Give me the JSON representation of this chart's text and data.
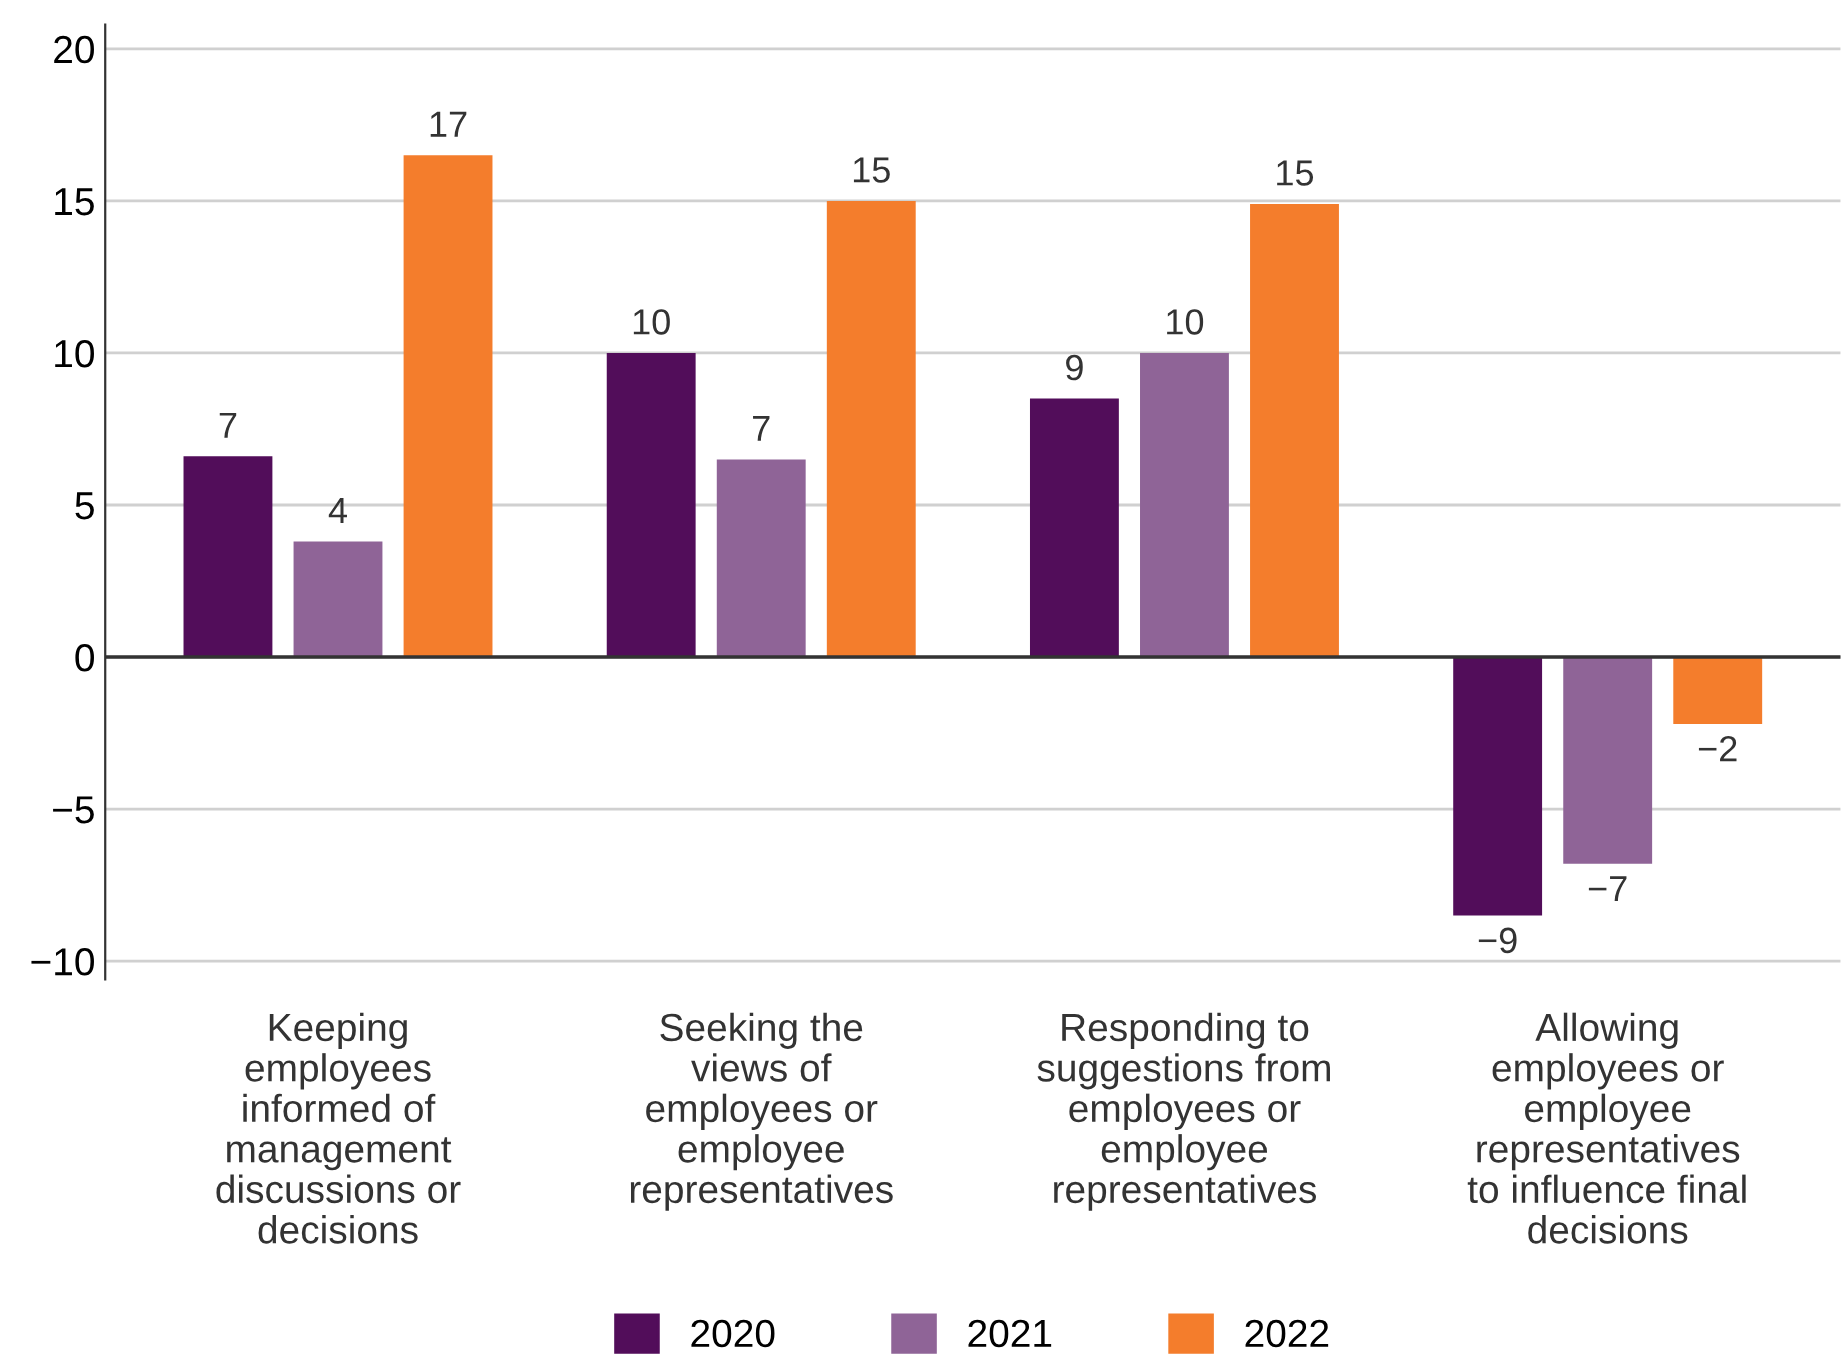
{
  "chart_data": {
    "type": "bar",
    "categories": [
      "Keeping\nemployees\ninformed of\nmanagement\ndiscussions or\ndecisions",
      "Seeking the\nviews of\nemployees or\nemployee\nrepresentatives",
      "Responding to\nsuggestions from\nemployees or\nemployee\nrepresentatives",
      "Allowing\nemployees or\nemployee\nrepresentatives\nto influence final\ndecisions"
    ],
    "series": [
      {
        "name": "2020",
        "color": "#520d5a",
        "values": [
          6.6,
          10.0,
          8.5,
          -8.5
        ],
        "value_labels": [
          "7",
          "10",
          "9",
          "−9"
        ]
      },
      {
        "name": "2021",
        "color": "#8f6497",
        "values": [
          3.8,
          6.5,
          10.0,
          -6.8
        ],
        "value_labels": [
          "4",
          "7",
          "10",
          "−7"
        ]
      },
      {
        "name": "2022",
        "color": "#f47d2c",
        "values": [
          16.5,
          15.0,
          14.9,
          -2.2
        ],
        "value_labels": [
          "17",
          "15",
          "15",
          "−2"
        ]
      }
    ],
    "ylim": [
      -10.6,
      20.8
    ],
    "yticks": [
      {
        "value": -10,
        "label": "−10"
      },
      {
        "value": -5,
        "label": "−5"
      },
      0,
      5,
      10,
      15,
      20
    ],
    "grid": "y",
    "legend": "bottom"
  }
}
